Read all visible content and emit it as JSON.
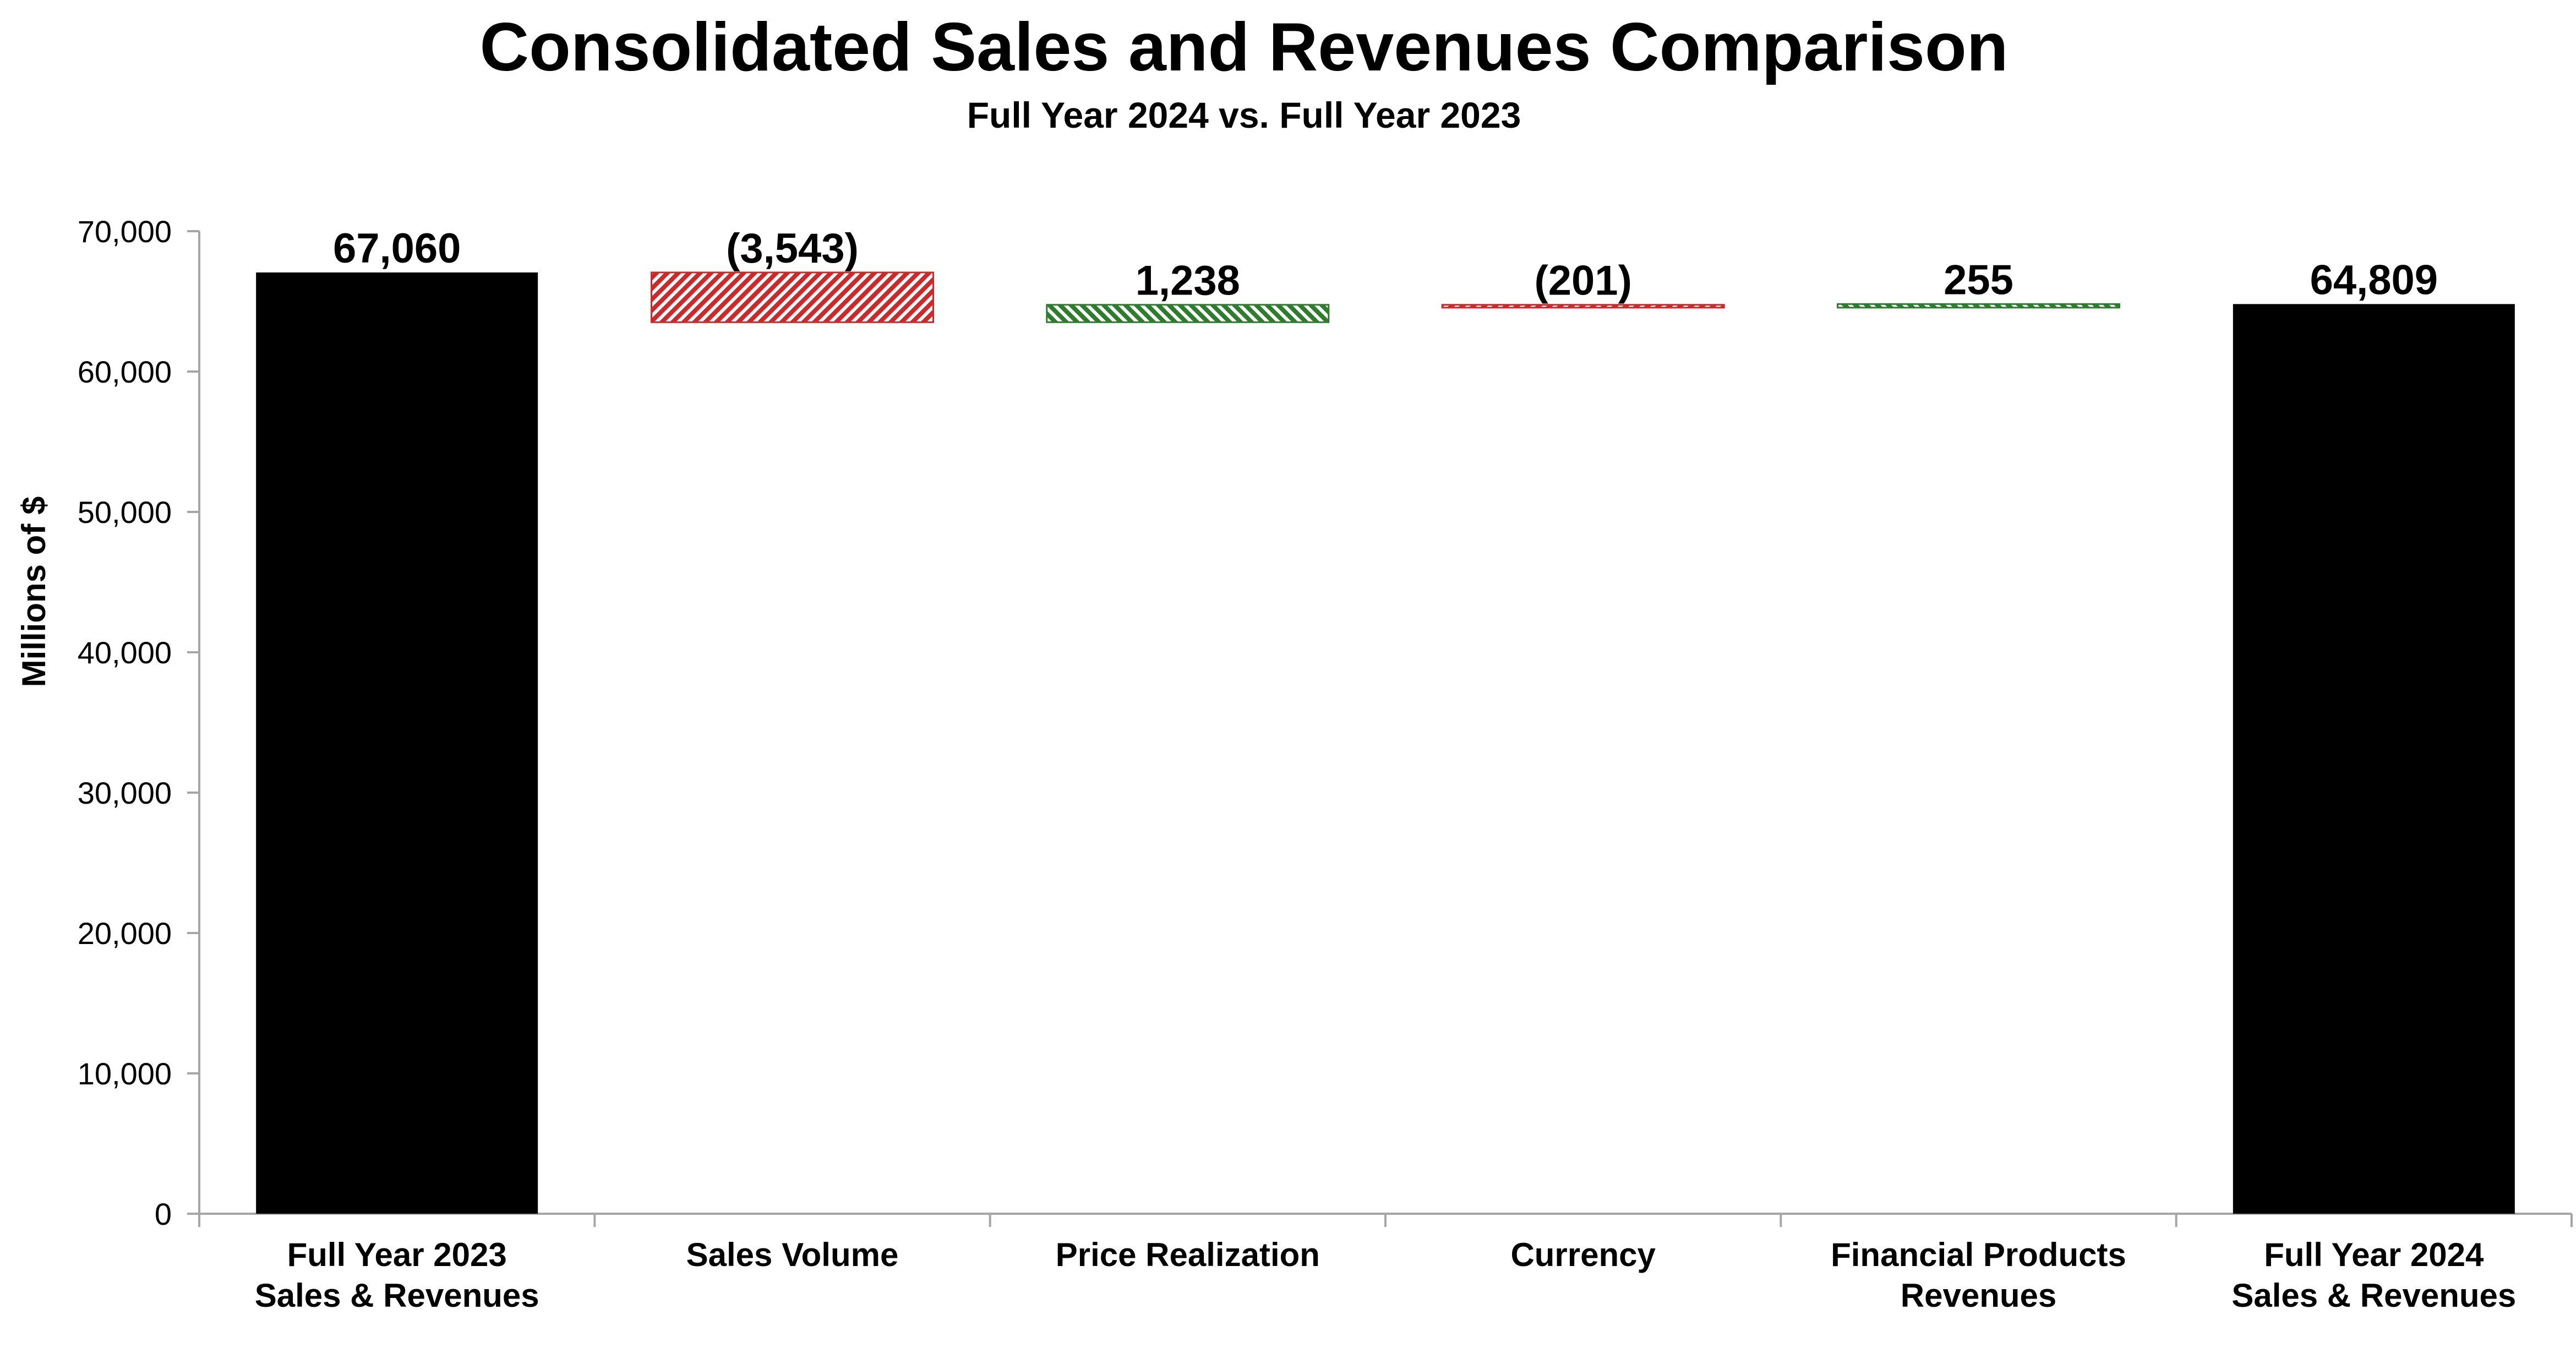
{
  "chart_data": {
    "type": "bar",
    "subtype": "waterfall",
    "title": "Consolidated Sales and Revenues Comparison",
    "subtitle": "Full Year 2024 vs. Full Year 2023",
    "ylabel": "Millions of $",
    "xlabel": "",
    "ylim": [
      0,
      70000
    ],
    "y_ticks": [
      0,
      10000,
      20000,
      30000,
      40000,
      50000,
      60000,
      70000
    ],
    "y_tick_labels": [
      "0",
      "10,000",
      "20,000",
      "30,000",
      "40,000",
      "50,000",
      "60,000",
      "70,000"
    ],
    "grid": false,
    "categories": [
      [
        "Full Year 2023",
        "Sales & Revenues"
      ],
      [
        "Sales Volume"
      ],
      [
        "Price Realization"
      ],
      [
        "Currency"
      ],
      [
        "Financial Products",
        "Revenues"
      ],
      [
        "Full Year 2024",
        "Sales & Revenues"
      ]
    ],
    "values": [
      67060,
      -3543,
      1238,
      -201,
      255,
      64809
    ],
    "kinds": [
      "total",
      "decrease",
      "increase",
      "decrease",
      "increase",
      "total"
    ],
    "data_labels": [
      "67,060",
      "(3,543)",
      "1,238",
      "(201)",
      "255",
      "64,809"
    ],
    "colors": {
      "total": "#000000",
      "increase": "#2e7d2e",
      "decrease": "#cc2a2a",
      "axis": "#a6a6a6"
    }
  }
}
